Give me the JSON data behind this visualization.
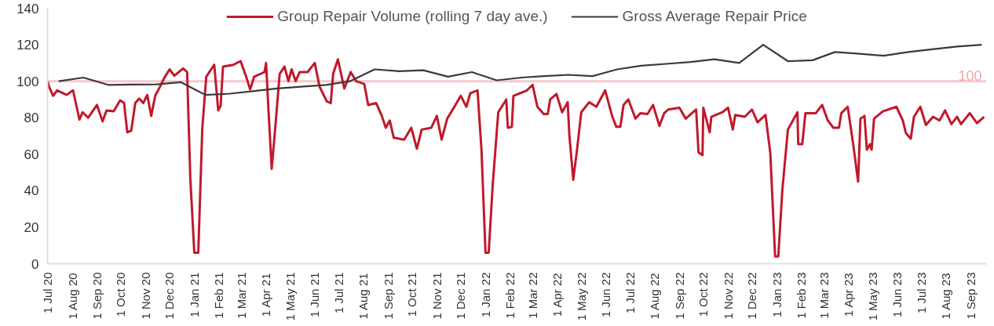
{
  "chart_data": {
    "type": "line",
    "xlim": [
      "2020-07-01",
      "2023-09-21"
    ],
    "ylim": [
      0,
      140
    ],
    "yticks": [
      0,
      20,
      40,
      60,
      80,
      100,
      120,
      140
    ],
    "xticks": [
      {
        "value": "2020-07-01",
        "label": "1 Jul 20"
      },
      {
        "value": "2020-08-01",
        "label": "1 Aug 20"
      },
      {
        "value": "2020-09-01",
        "label": "1 Sep 20"
      },
      {
        "value": "2020-10-01",
        "label": "1 Oct 20"
      },
      {
        "value": "2020-11-01",
        "label": "1 Nov 20"
      },
      {
        "value": "2020-12-01",
        "label": "1 Dec 20"
      },
      {
        "value": "2021-01-01",
        "label": "1 Jan 21"
      },
      {
        "value": "2021-02-01",
        "label": "1 Feb 21"
      },
      {
        "value": "2021-03-01",
        "label": "1 Mar 21"
      },
      {
        "value": "2021-04-01",
        "label": "1 Apr 21"
      },
      {
        "value": "2021-05-01",
        "label": "1 May 21"
      },
      {
        "value": "2021-06-01",
        "label": "1 Jun 21"
      },
      {
        "value": "2021-07-01",
        "label": "1 Jul 21"
      },
      {
        "value": "2021-08-01",
        "label": "1 Aug 21"
      },
      {
        "value": "2021-09-01",
        "label": "1 Sep 21"
      },
      {
        "value": "2021-10-01",
        "label": "1 Oct 21"
      },
      {
        "value": "2021-11-01",
        "label": "1 Nov 21"
      },
      {
        "value": "2021-12-01",
        "label": "1 Dec 21"
      },
      {
        "value": "2022-01-01",
        "label": "1 Jan 22"
      },
      {
        "value": "2022-02-01",
        "label": "1 Feb 22"
      },
      {
        "value": "2022-03-01",
        "label": "1 Mar 22"
      },
      {
        "value": "2022-04-01",
        "label": "1 Apr 22"
      },
      {
        "value": "2022-05-01",
        "label": "1 May 22"
      },
      {
        "value": "2022-06-01",
        "label": "1 Jun 22"
      },
      {
        "value": "2022-07-01",
        "label": "1 Jul 22"
      },
      {
        "value": "2022-08-01",
        "label": "1 Aug 22"
      },
      {
        "value": "2022-09-01",
        "label": "1 Sep 22"
      },
      {
        "value": "2022-10-01",
        "label": "1 Oct 22"
      },
      {
        "value": "2022-11-01",
        "label": "1 Nov 22"
      },
      {
        "value": "2022-12-01",
        "label": "1 Dec 22"
      },
      {
        "value": "2023-01-01",
        "label": "1 Jan 23"
      },
      {
        "value": "2023-02-01",
        "label": "1 Feb 23"
      },
      {
        "value": "2023-03-01",
        "label": "1 Mar 23"
      },
      {
        "value": "2023-04-01",
        "label": "1 Apr 23"
      },
      {
        "value": "2023-05-01",
        "label": "1 May 23"
      },
      {
        "value": "2023-06-01",
        "label": "1 Jun 23"
      },
      {
        "value": "2023-07-01",
        "label": "1 Jul 23"
      },
      {
        "value": "2023-08-01",
        "label": "1 Aug 23"
      },
      {
        "value": "2023-09-01",
        "label": "1 Sep 23"
      }
    ],
    "series": [
      {
        "name": "Group Repair Volume (rolling 7 day ave.)",
        "color": "#c0192c",
        "x": [
          "2020-07-01",
          "2020-07-03",
          "2020-07-08",
          "2020-07-13",
          "2020-07-25",
          "2020-08-02",
          "2020-08-10",
          "2020-08-14",
          "2020-08-21",
          "2020-09-01",
          "2020-09-08",
          "2020-09-13",
          "2020-09-22",
          "2020-09-30",
          "2020-10-05",
          "2020-10-09",
          "2020-10-14",
          "2020-10-19",
          "2020-10-24",
          "2020-10-29",
          "2020-11-03",
          "2020-11-08",
          "2020-11-13",
          "2020-11-19",
          "2020-11-24",
          "2020-12-01",
          "2020-12-07",
          "2020-12-18",
          "2020-12-23",
          "2020-12-27",
          "2021-01-01",
          "2021-01-06",
          "2021-01-11",
          "2021-01-16",
          "2021-01-26",
          "2021-01-31",
          "2021-02-03",
          "2021-02-06",
          "2021-02-19",
          "2021-02-28",
          "2021-03-07",
          "2021-03-12",
          "2021-03-17",
          "2021-03-30",
          "2021-04-01",
          "2021-04-04",
          "2021-04-08",
          "2021-04-12",
          "2021-04-18",
          "2021-04-24",
          "2021-04-29",
          "2021-05-03",
          "2021-05-08",
          "2021-05-13",
          "2021-05-23",
          "2021-06-01",
          "2021-06-07",
          "2021-06-16",
          "2021-06-21",
          "2021-06-24",
          "2021-06-30",
          "2021-07-08",
          "2021-07-16",
          "2021-07-23",
          "2021-08-02",
          "2021-08-07",
          "2021-08-17",
          "2021-08-24",
          "2021-08-29",
          "2021-09-03",
          "2021-09-08",
          "2021-09-21",
          "2021-09-30",
          "2021-10-07",
          "2021-10-13",
          "2021-10-25",
          "2021-11-01",
          "2021-11-07",
          "2021-11-14",
          "2021-11-23",
          "2021-12-01",
          "2021-12-08",
          "2021-12-13",
          "2021-12-22",
          "2021-12-27",
          "2022-01-01",
          "2022-01-05",
          "2022-01-10",
          "2022-01-17",
          "2022-01-27",
          "2022-01-29",
          "2022-02-03",
          "2022-02-05",
          "2022-02-22",
          "2022-03-01",
          "2022-03-07",
          "2022-03-15",
          "2022-03-20",
          "2022-03-23",
          "2022-03-31",
          "2022-04-07",
          "2022-04-14",
          "2022-04-16",
          "2022-04-21",
          "2022-04-26",
          "2022-05-01",
          "2022-05-11",
          "2022-05-20",
          "2022-05-31",
          "2022-06-09",
          "2022-06-14",
          "2022-06-19",
          "2022-06-23",
          "2022-06-29",
          "2022-07-08",
          "2022-07-14",
          "2022-07-23",
          "2022-07-30",
          "2022-08-07",
          "2022-08-13",
          "2022-08-18",
          "2022-09-01",
          "2022-09-09",
          "2022-09-22",
          "2022-09-25",
          "2022-09-30",
          "2022-10-01",
          "2022-10-09",
          "2022-10-11",
          "2022-10-25",
          "2022-11-01",
          "2022-11-07",
          "2022-11-10",
          "2022-11-22",
          "2022-12-01",
          "2022-12-08",
          "2022-12-18",
          "2022-12-24",
          "2022-12-30",
          "2023-01-03",
          "2023-01-08",
          "2023-01-15",
          "2023-01-27",
          "2023-01-28",
          "2023-02-02",
          "2023-02-06",
          "2023-02-19",
          "2023-02-27",
          "2023-03-06",
          "2023-03-13",
          "2023-03-20",
          "2023-03-23",
          "2023-03-31",
          "2023-04-07",
          "2023-04-13",
          "2023-04-16",
          "2023-04-21",
          "2023-04-24",
          "2023-04-28",
          "2023-04-30",
          "2023-05-03",
          "2023-05-14",
          "2023-05-31",
          "2023-06-08",
          "2023-06-12",
          "2023-06-18",
          "2023-06-22",
          "2023-06-30",
          "2023-07-07",
          "2023-07-16",
          "2023-07-24",
          "2023-07-31",
          "2023-08-08",
          "2023-08-15",
          "2023-08-20",
          "2023-08-31",
          "2023-09-09",
          "2023-09-18"
        ],
        "values": [
          100,
          97,
          92,
          95,
          92.5,
          95,
          79,
          83,
          80,
          87,
          78,
          84,
          83.5,
          89.5,
          88,
          72,
          73,
          88,
          90.5,
          88,
          92.5,
          81,
          92,
          97,
          101.5,
          106.5,
          103,
          107,
          105,
          47,
          6,
          6,
          74,
          102.5,
          109,
          84,
          86.5,
          108,
          109,
          111,
          102.5,
          95.5,
          102.5,
          105,
          110,
          84,
          52,
          72,
          104,
          108,
          100,
          106.5,
          100,
          105,
          105,
          110,
          97,
          89,
          88,
          104,
          112,
          96,
          105,
          100,
          98.5,
          87,
          88,
          81,
          74.5,
          78.5,
          69,
          68,
          74.5,
          63,
          73.5,
          74.5,
          81,
          68,
          79.5,
          86,
          92,
          86,
          93.5,
          95,
          62,
          6,
          6,
          43,
          83,
          90,
          74.5,
          75,
          92,
          95,
          98,
          86,
          82,
          82,
          90,
          93,
          83,
          88.5,
          71,
          46,
          63.5,
          83,
          88.5,
          86,
          95,
          80.5,
          75,
          75,
          87,
          90,
          79.5,
          82.5,
          82,
          87,
          75.5,
          82.5,
          84.5,
          85.5,
          79.5,
          84.5,
          61,
          59.5,
          85.5,
          72,
          80.5,
          83,
          85.5,
          73.5,
          81.5,
          80.5,
          84.5,
          77.5,
          81.5,
          60.5,
          4,
          4,
          40,
          73.5,
          83,
          65.5,
          65.5,
          82.5,
          82.5,
          87,
          78.5,
          74.5,
          74.5,
          82.5,
          86,
          65,
          45,
          79.5,
          81,
          62.5,
          65.5,
          62.5,
          79.5,
          83.5,
          86,
          78.5,
          71.5,
          68.5,
          80.5,
          86,
          76,
          80.5,
          78.5,
          84,
          76.5,
          80.5,
          76.5,
          82.5,
          77,
          80.5
        ]
      },
      {
        "name": "Gross Average Repair Price",
        "color": "#3a3a3a",
        "x": [
          "2020-07-15",
          "2020-08-15",
          "2020-09-15",
          "2020-10-15",
          "2020-11-15",
          "2020-12-15",
          "2021-01-15",
          "2021-02-15",
          "2021-03-15",
          "2021-04-15",
          "2021-05-15",
          "2021-06-15",
          "2021-07-15",
          "2021-08-15",
          "2021-09-15",
          "2021-10-15",
          "2021-11-15",
          "2021-12-15",
          "2022-01-15",
          "2022-02-15",
          "2022-03-15",
          "2022-04-15",
          "2022-05-15",
          "2022-06-15",
          "2022-07-15",
          "2022-08-15",
          "2022-09-15",
          "2022-10-15",
          "2022-11-15",
          "2022-12-15",
          "2023-01-15",
          "2023-02-15",
          "2023-03-15",
          "2023-04-15",
          "2023-05-15",
          "2023-06-15",
          "2023-07-15",
          "2023-08-15",
          "2023-09-15"
        ],
        "values": [
          100,
          102,
          98,
          98.2,
          98.3,
          99.5,
          92.5,
          93.2,
          94.5,
          96,
          97,
          98,
          100,
          106.5,
          105.5,
          106,
          102.5,
          105,
          100.5,
          102,
          102.8,
          103.5,
          102.8,
          106.5,
          108.5,
          109.5,
          110.5,
          112,
          110,
          120,
          111,
          111.5,
          116,
          115,
          114,
          116,
          117.5,
          119,
          120
        ]
      }
    ],
    "ref_lines": [
      {
        "axis": "y",
        "value": 100,
        "label": "100",
        "color": "#f6c9cd"
      }
    ],
    "legend": "top",
    "grid": false
  }
}
